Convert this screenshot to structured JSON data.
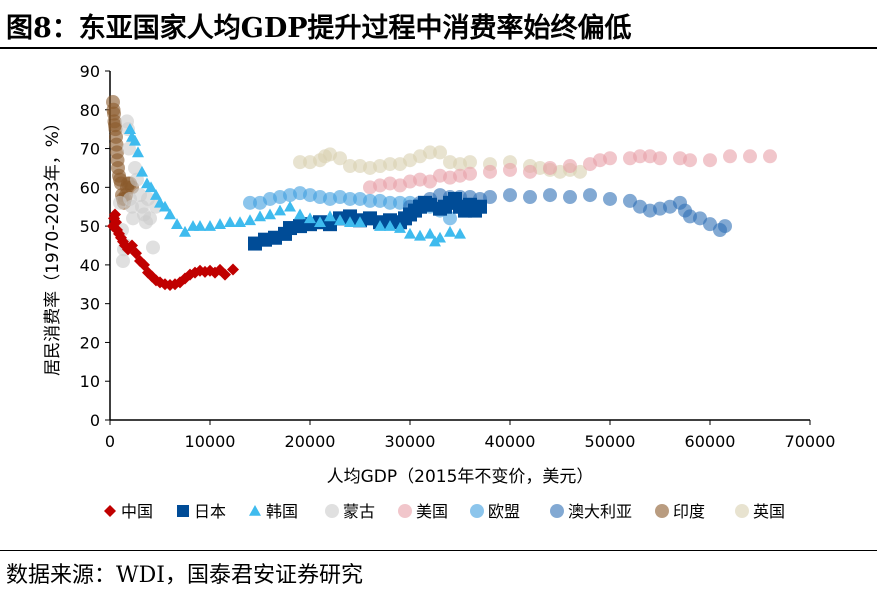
{
  "title": "图8：东亚国家人均GDP提升过程中消费率始终偏低",
  "source": "数据来源：WDI，国泰君安证券研究",
  "chart_data": {
    "type": "scatter",
    "xlabel": "人均GDP（2015年不变价，美元）",
    "ylabel": "居民消费率（1970-2023年，%）",
    "xlim": [
      0,
      70000
    ],
    "ylim": [
      0,
      90
    ],
    "xticks": [
      "0",
      "10000",
      "20000",
      "30000",
      "40000",
      "50000",
      "60000",
      "70000"
    ],
    "yticks": [
      "0",
      "10",
      "20",
      "30",
      "40",
      "50",
      "60",
      "70",
      "80",
      "90"
    ],
    "grid": false,
    "legend": "bottom",
    "series": [
      {
        "name": "中国",
        "color": "#c00000",
        "marker": "diamond",
        "points": [
          [
            300,
            50
          ],
          [
            400,
            52
          ],
          [
            500,
            53
          ],
          [
            600,
            51
          ],
          [
            700,
            49
          ],
          [
            900,
            48
          ],
          [
            1100,
            47
          ],
          [
            1300,
            46
          ],
          [
            1500,
            45
          ],
          [
            1800,
            44
          ],
          [
            2200,
            45
          ],
          [
            2600,
            43
          ],
          [
            3000,
            41
          ],
          [
            3400,
            40
          ],
          [
            3800,
            38
          ],
          [
            4200,
            37
          ],
          [
            4600,
            36
          ],
          [
            5000,
            35.5
          ],
          [
            5500,
            35
          ],
          [
            6000,
            34.8
          ],
          [
            6500,
            35
          ],
          [
            7000,
            35.5
          ],
          [
            7500,
            36.5
          ],
          [
            8000,
            37.5
          ],
          [
            8500,
            38
          ],
          [
            9000,
            38.5
          ],
          [
            9500,
            38.2
          ],
          [
            10000,
            38.5
          ],
          [
            10500,
            38
          ],
          [
            11000,
            38.7
          ],
          [
            11500,
            37.5
          ],
          [
            12300,
            38.8
          ]
        ]
      },
      {
        "name": "日本",
        "color": "#004c97",
        "marker": "square",
        "points": [
          [
            14500,
            45.5
          ],
          [
            15500,
            46.5
          ],
          [
            16500,
            47
          ],
          [
            17500,
            48
          ],
          [
            18000,
            49.5
          ],
          [
            19000,
            50
          ],
          [
            20000,
            50.5
          ],
          [
            21000,
            51
          ],
          [
            22000,
            50.5
          ],
          [
            23000,
            52
          ],
          [
            24000,
            52.5
          ],
          [
            25000,
            51.5
          ],
          [
            26000,
            52
          ],
          [
            27000,
            51
          ],
          [
            28000,
            51.5
          ],
          [
            29000,
            51
          ],
          [
            29500,
            52
          ],
          [
            30000,
            53
          ],
          [
            30500,
            54
          ],
          [
            31000,
            55
          ],
          [
            31500,
            56
          ],
          [
            32000,
            55.5
          ],
          [
            33000,
            54.5
          ],
          [
            33500,
            55
          ],
          [
            34000,
            56
          ],
          [
            34500,
            57
          ],
          [
            35000,
            55
          ],
          [
            35500,
            54
          ],
          [
            36000,
            55.5
          ],
          [
            36500,
            54
          ],
          [
            37000,
            55
          ]
        ]
      },
      {
        "name": "韩国",
        "color": "#3fbbee",
        "marker": "triangle",
        "points": [
          [
            2000,
            75
          ],
          [
            2200,
            73
          ],
          [
            2500,
            72
          ],
          [
            2800,
            69
          ],
          [
            3200,
            64
          ],
          [
            3700,
            61
          ],
          [
            4100,
            60
          ],
          [
            4600,
            58
          ],
          [
            5000,
            56
          ],
          [
            5500,
            55
          ],
          [
            6000,
            53
          ],
          [
            6700,
            50.5
          ],
          [
            7500,
            48.5
          ],
          [
            8300,
            50
          ],
          [
            9000,
            50
          ],
          [
            10000,
            50
          ],
          [
            11000,
            50.5
          ],
          [
            12000,
            51
          ],
          [
            13000,
            51
          ],
          [
            14000,
            51.5
          ],
          [
            15000,
            52.5
          ],
          [
            16000,
            53
          ],
          [
            17000,
            54
          ],
          [
            18000,
            55
          ],
          [
            19000,
            53
          ],
          [
            20000,
            52
          ],
          [
            21000,
            51
          ],
          [
            22000,
            52.5
          ],
          [
            23000,
            51.5
          ],
          [
            24000,
            51
          ],
          [
            25000,
            51
          ],
          [
            27000,
            50
          ],
          [
            28000,
            50
          ],
          [
            29000,
            49.5
          ],
          [
            30000,
            48
          ],
          [
            31000,
            47.5
          ],
          [
            32000,
            48
          ],
          [
            32500,
            46
          ],
          [
            33000,
            47
          ],
          [
            34000,
            48.5
          ],
          [
            35000,
            48
          ]
        ]
      },
      {
        "name": "蒙古",
        "color": "#cccccc",
        "marker": "circle",
        "points": [
          [
            1000,
            56
          ],
          [
            1200,
            49
          ],
          [
            1300,
            41
          ],
          [
            1400,
            44
          ],
          [
            1600,
            45
          ],
          [
            1700,
            77
          ],
          [
            1800,
            75
          ],
          [
            1900,
            70
          ],
          [
            2000,
            57
          ],
          [
            2200,
            55
          ],
          [
            2300,
            52
          ],
          [
            2500,
            65
          ],
          [
            2700,
            62
          ],
          [
            3000,
            58
          ],
          [
            3200,
            55
          ],
          [
            3400,
            53
          ],
          [
            3600,
            51
          ],
          [
            3800,
            57
          ],
          [
            4000,
            52
          ],
          [
            4300,
            44.5
          ],
          [
            4600,
            55
          ]
        ]
      },
      {
        "name": "美国",
        "color": "#e8a0a8",
        "marker": "circle",
        "points": [
          [
            26000,
            60
          ],
          [
            27000,
            60.5
          ],
          [
            28000,
            61
          ],
          [
            29000,
            60.5
          ],
          [
            30000,
            61.5
          ],
          [
            31000,
            62
          ],
          [
            32000,
            61.5
          ],
          [
            33000,
            63
          ],
          [
            34000,
            62.5
          ],
          [
            35000,
            63
          ],
          [
            36000,
            63.5
          ],
          [
            38000,
            64
          ],
          [
            40000,
            64.5
          ],
          [
            42000,
            64
          ],
          [
            44000,
            65
          ],
          [
            46000,
            65.5
          ],
          [
            48000,
            66
          ],
          [
            49000,
            67
          ],
          [
            50000,
            67.5
          ],
          [
            52000,
            67.5
          ],
          [
            53000,
            68
          ],
          [
            54000,
            68
          ],
          [
            55000,
            67.5
          ],
          [
            57000,
            67.5
          ],
          [
            58000,
            67
          ],
          [
            60000,
            67
          ],
          [
            62000,
            68
          ],
          [
            64000,
            68
          ],
          [
            66000,
            68
          ]
        ]
      },
      {
        "name": "欧盟",
        "color": "#3f9fe0",
        "marker": "circle",
        "points": [
          [
            14000,
            56
          ],
          [
            15000,
            56
          ],
          [
            16000,
            57
          ],
          [
            17000,
            57.5
          ],
          [
            18000,
            58
          ],
          [
            19000,
            58.5
          ],
          [
            20000,
            58
          ],
          [
            21000,
            57.5
          ],
          [
            22000,
            57
          ],
          [
            23000,
            57.5
          ],
          [
            24000,
            57
          ],
          [
            25000,
            57
          ],
          [
            26000,
            56.5
          ],
          [
            27000,
            56.5
          ],
          [
            28000,
            56
          ],
          [
            29000,
            56
          ],
          [
            30000,
            56
          ],
          [
            31000,
            55.5
          ],
          [
            32000,
            55
          ],
          [
            33000,
            54
          ],
          [
            34000,
            52
          ],
          [
            35000,
            55
          ]
        ]
      },
      {
        "name": "澳大利亚",
        "color": "#2f6fb5",
        "marker": "circle",
        "points": [
          [
            30000,
            55
          ],
          [
            31000,
            56
          ],
          [
            32000,
            57
          ],
          [
            33000,
            58
          ],
          [
            34000,
            57.5
          ],
          [
            35000,
            57.5
          ],
          [
            36000,
            57.5
          ],
          [
            37000,
            57
          ],
          [
            38000,
            57.5
          ],
          [
            40000,
            58
          ],
          [
            42000,
            57.5
          ],
          [
            44000,
            58
          ],
          [
            46000,
            57.5
          ],
          [
            48000,
            58
          ],
          [
            50000,
            57
          ],
          [
            52000,
            56.5
          ],
          [
            53000,
            55
          ],
          [
            54000,
            54
          ],
          [
            55000,
            54.5
          ],
          [
            56000,
            55
          ],
          [
            57000,
            56
          ],
          [
            57500,
            54
          ],
          [
            58000,
            52.5
          ],
          [
            59000,
            52
          ],
          [
            60000,
            50.5
          ],
          [
            61000,
            49
          ],
          [
            61500,
            50
          ]
        ]
      },
      {
        "name": "印度",
        "color": "#8b5a2b",
        "marker": "circle",
        "points": [
          [
            300,
            82
          ],
          [
            350,
            80
          ],
          [
            400,
            79
          ],
          [
            450,
            77
          ],
          [
            500,
            76
          ],
          [
            550,
            75
          ],
          [
            600,
            73
          ],
          [
            650,
            71
          ],
          [
            700,
            69
          ],
          [
            750,
            67
          ],
          [
            800,
            65
          ],
          [
            900,
            63
          ],
          [
            1000,
            62
          ],
          [
            1100,
            61
          ],
          [
            1200,
            58
          ],
          [
            1300,
            57
          ],
          [
            1400,
            56
          ],
          [
            1500,
            57
          ],
          [
            1600,
            58
          ],
          [
            1700,
            60
          ],
          [
            1800,
            61
          ],
          [
            2000,
            61
          ],
          [
            2200,
            60
          ]
        ]
      },
      {
        "name": "英国",
        "color": "#d8d0b0",
        "marker": "circle",
        "points": [
          [
            19000,
            66.5
          ],
          [
            20000,
            66.5
          ],
          [
            21000,
            67
          ],
          [
            21500,
            68
          ],
          [
            22000,
            68.5
          ],
          [
            23000,
            67.5
          ],
          [
            24000,
            65.5
          ],
          [
            25000,
            65.5
          ],
          [
            26000,
            65
          ],
          [
            27000,
            65.5
          ],
          [
            28000,
            66
          ],
          [
            29000,
            66
          ],
          [
            30000,
            67
          ],
          [
            31000,
            68
          ],
          [
            32000,
            69
          ],
          [
            33000,
            69
          ],
          [
            34000,
            66.5
          ],
          [
            35000,
            66
          ],
          [
            36000,
            66.5
          ],
          [
            38000,
            66
          ],
          [
            40000,
            66.5
          ],
          [
            42000,
            65.5
          ],
          [
            43000,
            65
          ],
          [
            44000,
            64.5
          ],
          [
            45000,
            64
          ],
          [
            46000,
            64.5
          ],
          [
            47000,
            64
          ]
        ]
      }
    ]
  }
}
